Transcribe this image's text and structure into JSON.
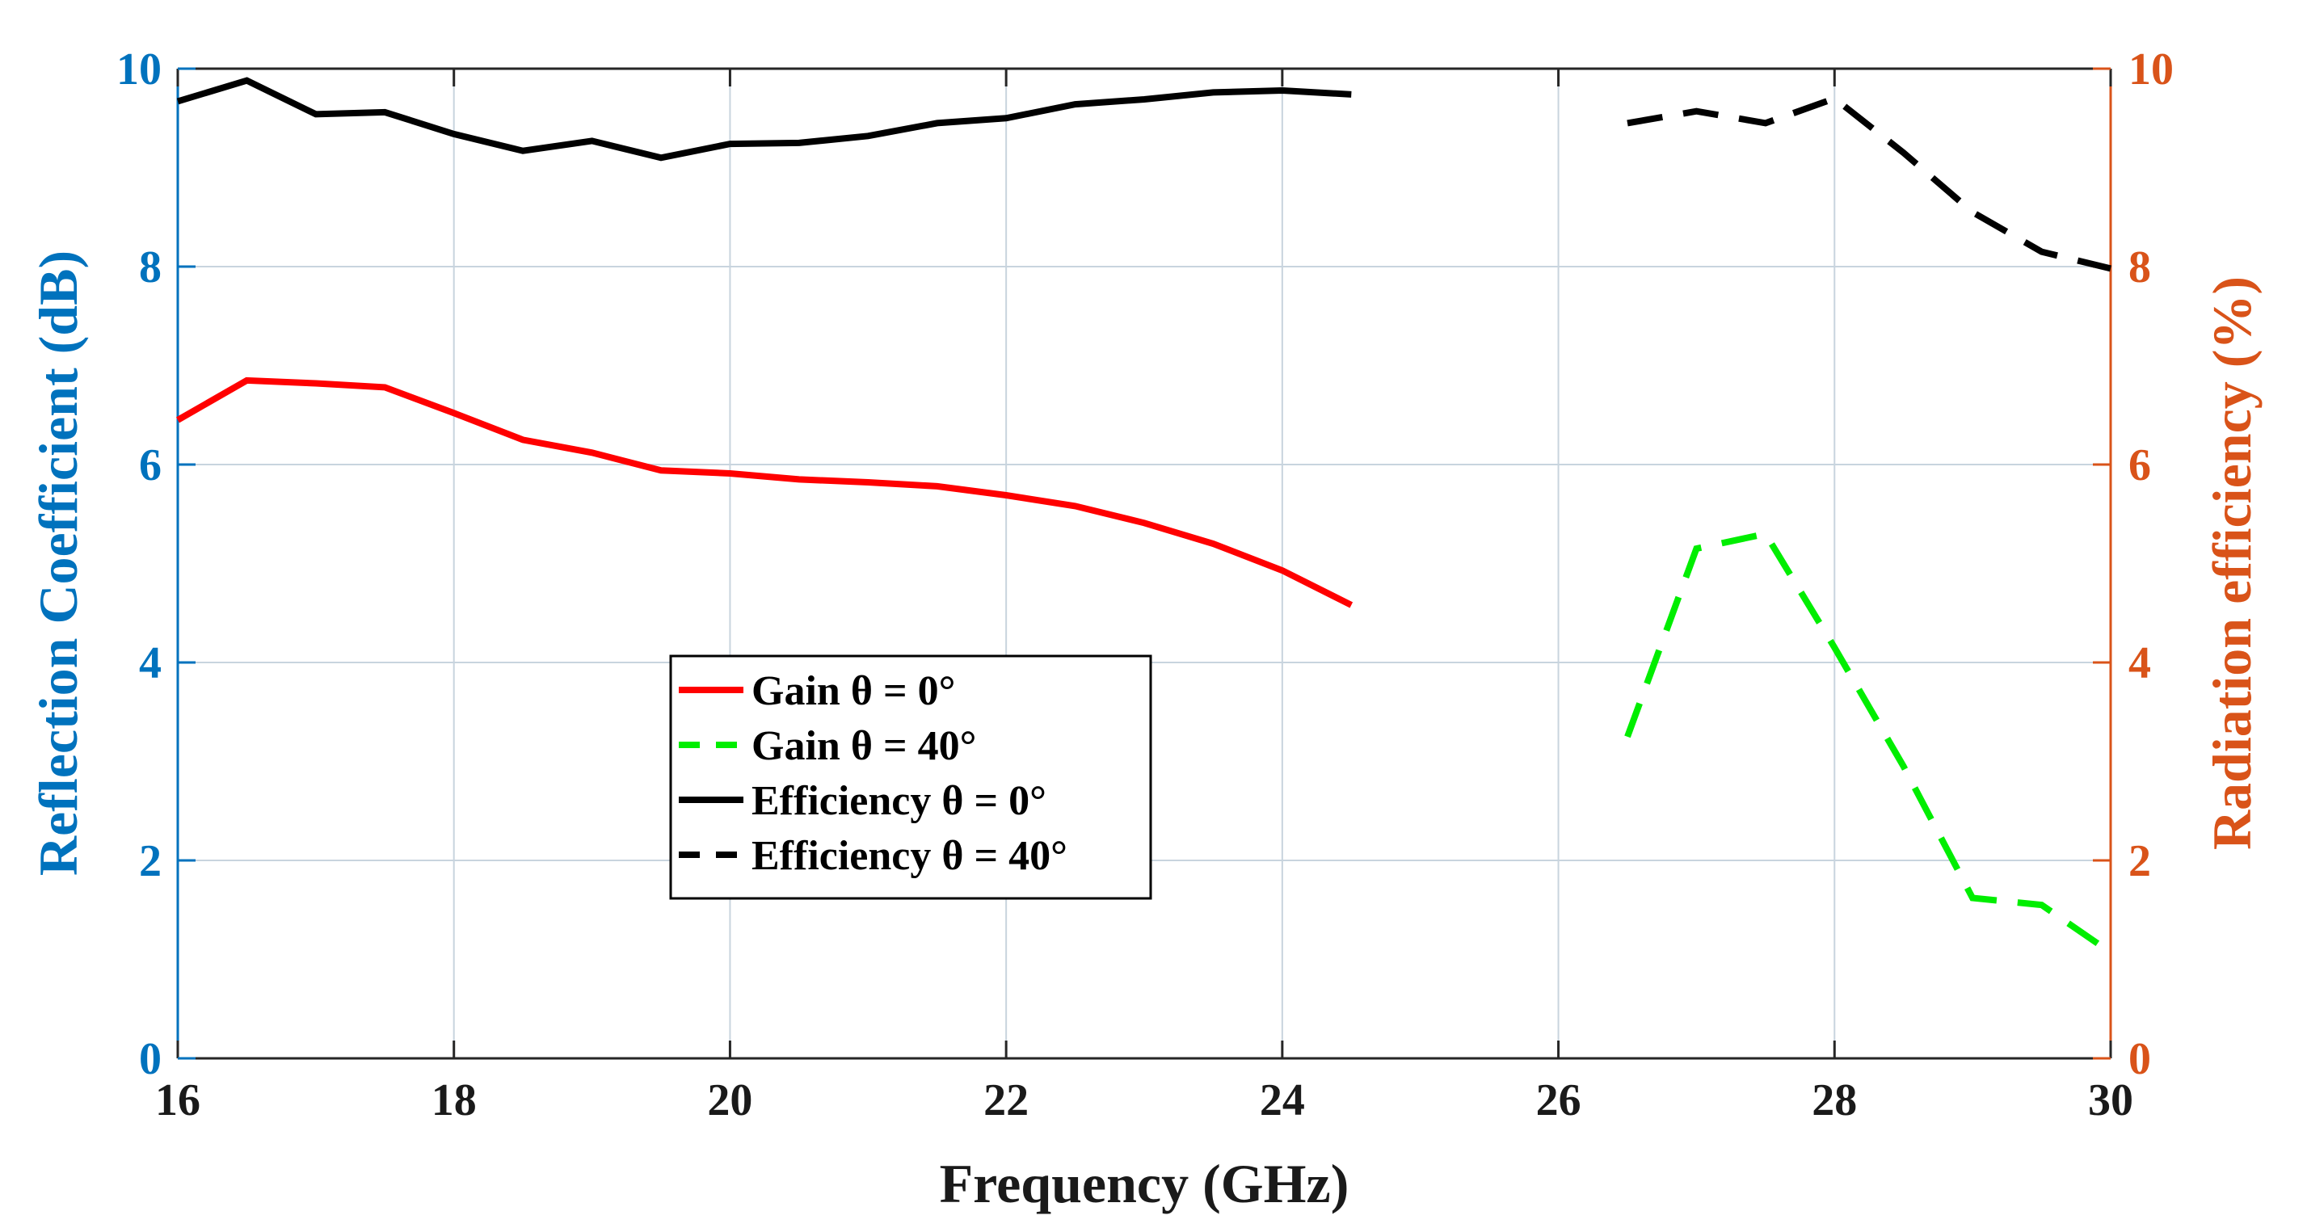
{
  "chart_data": {
    "type": "line",
    "xlabel": "Frequency (GHz)",
    "ylabel_left": "Reflection Coefficient (dB)",
    "ylabel_right": "Radiation efficiency (%)",
    "xlim": [
      16,
      30
    ],
    "ylim_left": [
      0,
      10
    ],
    "ylim_right": [
      0,
      10
    ],
    "x_ticks": [
      "16",
      "18",
      "20",
      "22",
      "24",
      "26",
      "28",
      "30"
    ],
    "x_tick_values": [
      16,
      18,
      20,
      22,
      24,
      26,
      28,
      30
    ],
    "y_ticks_left": [
      "0",
      "2",
      "4",
      "6",
      "8",
      "10"
    ],
    "y_ticks_right": [
      "0",
      "2",
      "4",
      "6",
      "8",
      "10"
    ],
    "y_tick_values": [
      0,
      2,
      4,
      6,
      8,
      10
    ],
    "grid": true,
    "legend_position": "center-left",
    "colors": {
      "left_axis": "#0072BD",
      "right_axis": "#D95319",
      "gain0": "#ff0000",
      "gain40": "#00ee00",
      "eff": "#000000"
    },
    "series": [
      {
        "name": "Gain θ = 0°",
        "color": "#ff0000",
        "dash": "solid",
        "x": [
          16,
          16.5,
          17,
          17.5,
          18,
          18.5,
          19,
          19.5,
          20,
          20.5,
          21,
          21.5,
          22,
          22.5,
          23,
          23.5,
          24,
          24.5
        ],
        "y": [
          6.45,
          6.85,
          6.82,
          6.78,
          6.52,
          6.25,
          6.12,
          5.94,
          5.91,
          5.85,
          5.82,
          5.78,
          5.69,
          5.58,
          5.41,
          5.2,
          4.93,
          4.58
        ]
      },
      {
        "name": "Gain θ = 40°",
        "color": "#00ee00",
        "dash": "dashed",
        "x": [
          26.5,
          27,
          27.5,
          28,
          28.5,
          29,
          29.5,
          30
        ],
        "y": [
          3.25,
          5.15,
          5.3,
          4.15,
          2.95,
          1.62,
          1.55,
          1.07
        ]
      },
      {
        "name": "Efficiency θ = 0°",
        "color": "#000000",
        "dash": "solid",
        "x": [
          16,
          16.5,
          17,
          17.5,
          18,
          18.5,
          19,
          19.5,
          20,
          20.5,
          21,
          21.5,
          22,
          22.5,
          23,
          23.5,
          24,
          24.5
        ],
        "y": [
          9.67,
          9.88,
          9.54,
          9.56,
          9.34,
          9.17,
          9.27,
          9.1,
          9.24,
          9.25,
          9.32,
          9.45,
          9.5,
          9.64,
          9.69,
          9.76,
          9.78,
          9.74
        ]
      },
      {
        "name": "Efficiency θ = 40°",
        "color": "#000000",
        "dash": "dashed",
        "x": [
          26.5,
          27,
          27.5,
          28,
          28.5,
          29,
          29.5,
          30
        ],
        "y": [
          9.45,
          9.57,
          9.45,
          9.7,
          9.15,
          8.55,
          8.15,
          7.98
        ]
      }
    ],
    "legend": [
      {
        "label": "Gain θ = 0°",
        "series": 0
      },
      {
        "label": "Gain θ = 40°",
        "series": 1
      },
      {
        "label": "Efficiency θ = 0°",
        "series": 2
      },
      {
        "label": "Efficiency θ = 40°",
        "series": 3
      }
    ]
  }
}
